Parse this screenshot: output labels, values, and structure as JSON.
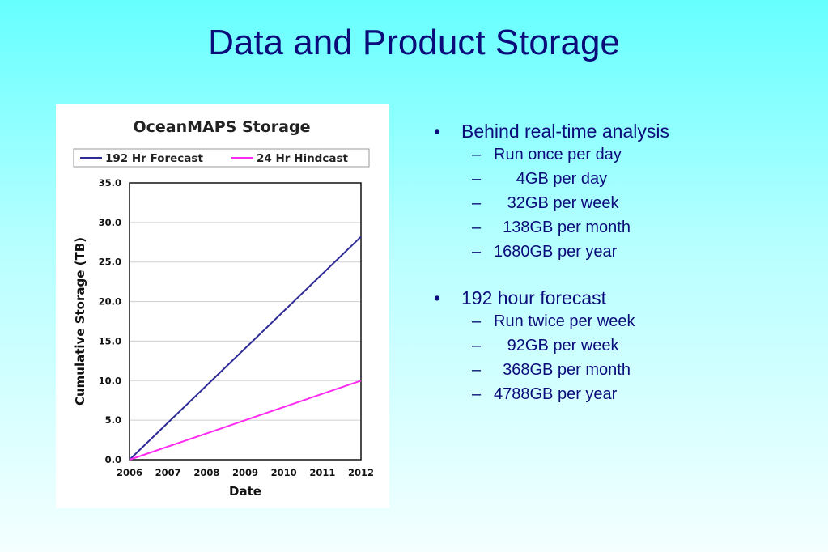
{
  "slide": {
    "title": "Data and Product Storage"
  },
  "bullets": [
    {
      "text": "Behind real-time analysis",
      "subitems": [
        "Run once per day",
        "     4GB per day",
        "   32GB per week",
        "  138GB per month",
        "1680GB per year"
      ]
    },
    {
      "text": "192 hour forecast",
      "subitems": [
        "Run twice per week",
        "   92GB per week",
        "  368GB per month",
        "4788GB per year"
      ]
    }
  ],
  "chart_data": {
    "type": "line",
    "title": "OceanMAPS Storage",
    "xlabel": "Date",
    "ylabel": "Cumulative Storage (TB)",
    "x": [
      2006,
      2012
    ],
    "x_ticks": [
      "2006",
      "2007",
      "2008",
      "2009",
      "2010",
      "2011",
      "2012"
    ],
    "y_ticks": [
      "0.0",
      "5.0",
      "10.0",
      "15.0",
      "20.0",
      "25.0",
      "30.0",
      "35.0"
    ],
    "xlim": [
      2006,
      2012
    ],
    "ylim": [
      0,
      35
    ],
    "grid": true,
    "legend_position": "top",
    "series": [
      {
        "name": "192 Hr Forecast",
        "color": "#2e2a96",
        "values": [
          0.0,
          28.2
        ]
      },
      {
        "name": "24 Hr Hindcast",
        "color": "#ff2bf0",
        "values": [
          0.0,
          10.0
        ]
      }
    ]
  }
}
